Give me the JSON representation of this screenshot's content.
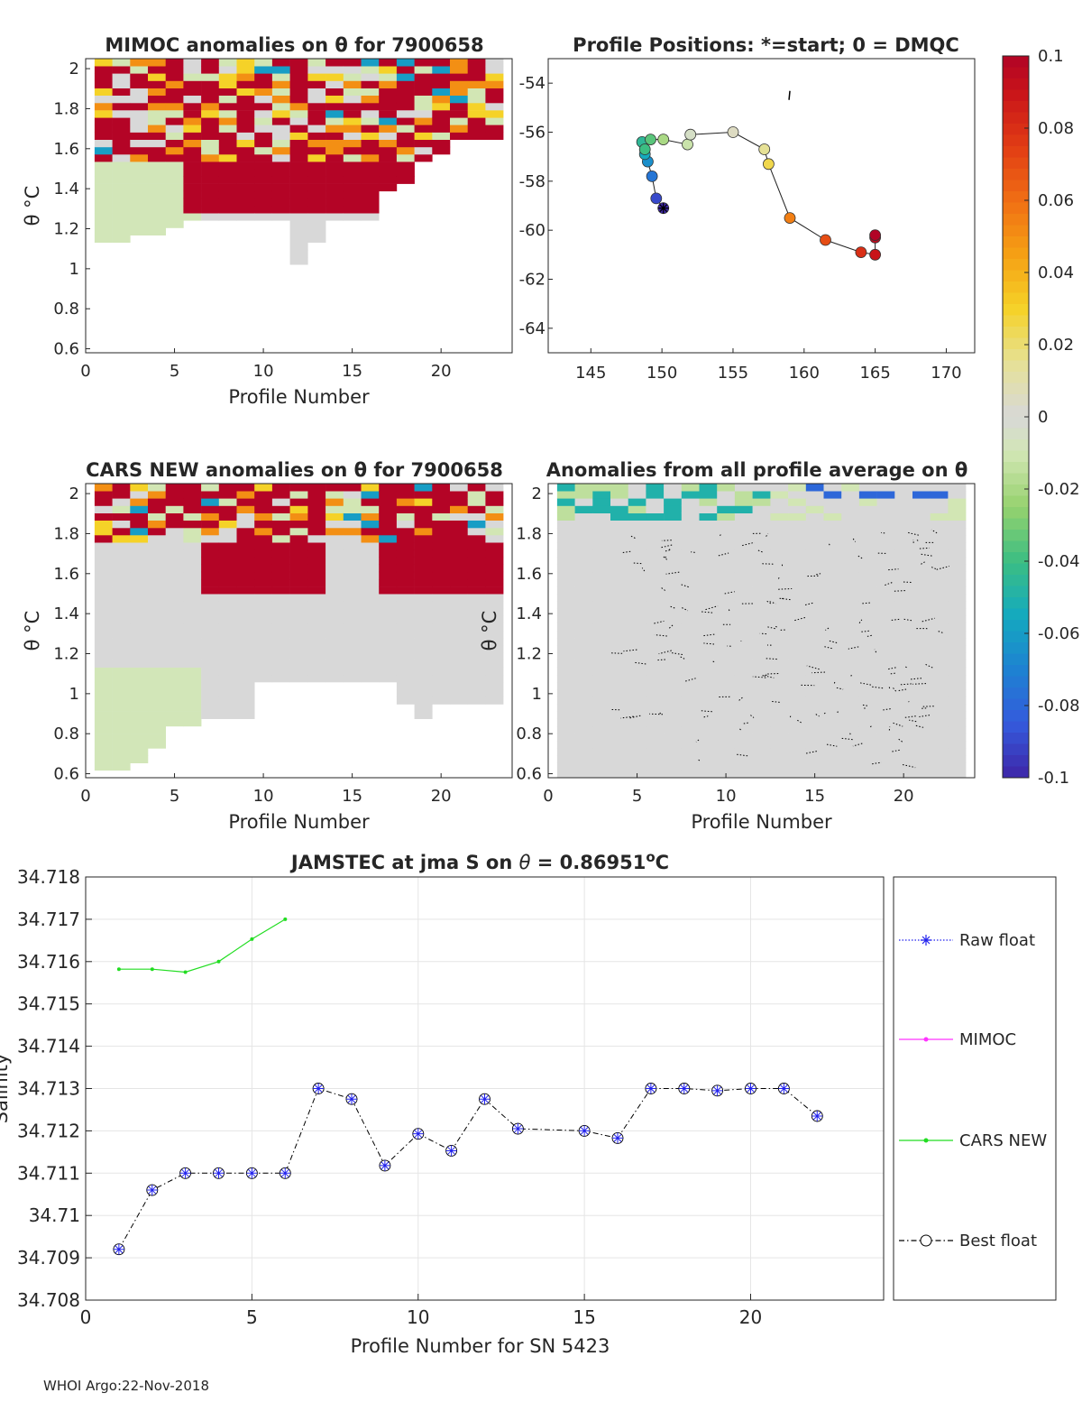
{
  "footer": "WHOI Argo:22-Nov-2018",
  "colors": {
    "red": "#b40426",
    "lightgray": "#d8d8d8",
    "palegreen": "#d2e6b8",
    "cars_line": "#22dd22",
    "mimoc_line": "#ff33ff",
    "raw_marker": "#2222ee",
    "best_line": "#000000",
    "grid": "#e5e5e5"
  },
  "chart_data": [
    {
      "id": "mimoc",
      "type": "heatmap",
      "title": "MIMOC anomalies on θ  for 7900658",
      "xlabel": "Profile Number",
      "ylabel": "θ °C",
      "xlim": [
        0,
        24
      ],
      "ylim": [
        0.58,
        2.05
      ],
      "xticks": [
        "0",
        "5",
        "10",
        "15",
        "20"
      ],
      "yticks": [
        "0.6",
        "0.8",
        "1",
        "1.2",
        "1.4",
        "1.6",
        "1.8",
        "2"
      ],
      "profiles": [
        1,
        23
      ],
      "bottom_theta": [
        1.15,
        1.15,
        1.17,
        1.2,
        1.22,
        1.25,
        1.27,
        1.27,
        1.27,
        1.27,
        1.27,
        1.04,
        1.15,
        1.27,
        1.27,
        1.27,
        1.4,
        1.45,
        1.55,
        1.6,
        1.65,
        1.68,
        1.68
      ],
      "red_region": {
        "from_profile": 6,
        "to_profile": 19,
        "from_theta": 1.25,
        "to_theta": 2.05
      },
      "noisy_top": {
        "from_theta": 1.5,
        "to_theta": 2.05
      }
    },
    {
      "id": "positions",
      "type": "scatter",
      "title": "Profile Positions: *=start; 0 = DMQC",
      "xlabel": "",
      "ylabel": "",
      "xlim": [
        142,
        172
      ],
      "ylim": [
        -65,
        -53
      ],
      "xticks": [
        "145",
        "150",
        "155",
        "160",
        "165",
        "170"
      ],
      "yticks": [
        "-54",
        "-56",
        "-58",
        "-60",
        "-62",
        "-64"
      ],
      "lon": [
        150.1,
        149.6,
        149.3,
        149.0,
        148.8,
        148.6,
        148.8,
        149.2,
        150.1,
        151.8,
        152.0,
        155.0,
        157.2,
        157.5,
        159.0,
        161.5,
        164.0,
        165.0,
        165.0,
        165.0
      ],
      "lat": [
        -59.1,
        -58.7,
        -57.8,
        -57.2,
        -56.9,
        -56.4,
        -56.7,
        -56.3,
        -56.3,
        -56.5,
        -56.1,
        -56.0,
        -56.7,
        -57.3,
        -59.5,
        -60.4,
        -60.9,
        -61.0,
        -60.3,
        -60.2
      ],
      "color_value": [
        -0.1,
        -0.09,
        -0.075,
        -0.065,
        -0.055,
        -0.045,
        -0.04,
        -0.035,
        -0.02,
        -0.012,
        -0.005,
        0.005,
        0.015,
        0.025,
        0.055,
        0.07,
        0.08,
        0.09,
        0.095,
        0.1
      ],
      "mark": {
        "lon": 159.0,
        "lat": -54.5
      }
    },
    {
      "id": "cars",
      "type": "heatmap",
      "title": "CARS NEW anomalies on θ for 7900658",
      "xlabel": "Profile Number",
      "ylabel": "θ °C",
      "xlim": [
        0,
        24
      ],
      "ylim": [
        0.58,
        2.05
      ],
      "xticks": [
        "0",
        "5",
        "10",
        "15",
        "20"
      ],
      "yticks": [
        "0.6",
        "0.8",
        "1",
        "1.2",
        "1.4",
        "1.6",
        "1.8",
        "2"
      ],
      "profiles": [
        1,
        23
      ],
      "bottom_theta": [
        0.63,
        0.64,
        0.68,
        0.75,
        0.85,
        0.85,
        0.9,
        0.91,
        0.91,
        1.06,
        1.07,
        1.07,
        1.07,
        1.07,
        1.07,
        1.07,
        1.07,
        0.96,
        0.89,
        0.96,
        0.96,
        0.97,
        0.97
      ],
      "red_region": {
        "from_profile": 7,
        "to_profile": 23,
        "from_theta": 1.48,
        "to_theta": 2.05
      },
      "noisy_top": {
        "from_theta": 1.72,
        "to_theta": 2.05
      }
    },
    {
      "id": "all_avg",
      "type": "heatmap",
      "title": "Anomalies from all profile average on θ",
      "xlabel": "Profile Number",
      "ylabel": "θ °C",
      "xlim": [
        0,
        24
      ],
      "ylim": [
        0.58,
        2.05
      ],
      "xticks": [
        "0",
        "5",
        "10",
        "15",
        "20"
      ],
      "yticks": [
        "0.6",
        "0.8",
        "1",
        "1.2",
        "1.4",
        "1.6",
        "1.8",
        "2"
      ],
      "profiles": [
        1,
        23
      ],
      "bottom_theta": [
        0.58,
        0.58,
        0.58,
        0.58,
        0.58,
        0.58,
        0.58,
        0.58,
        0.58,
        0.58,
        0.58,
        0.58,
        0.58,
        0.58,
        0.58,
        0.58,
        0.58,
        0.58,
        0.58,
        0.58,
        0.58,
        0.58,
        0.58
      ],
      "noisy_top": {
        "from_theta": 1.86,
        "to_theta": 2.05
      }
    },
    {
      "id": "colorbar",
      "type": "colorbar",
      "range": [
        -0.1,
        0.1
      ],
      "ticks": [
        "0.1",
        "0.08",
        "0.06",
        "0.04",
        "0.02",
        "0",
        "-0.02",
        "-0.04",
        "-0.06",
        "-0.08",
        "-0.1"
      ],
      "tick_values": [
        0.1,
        0.08,
        0.06,
        0.04,
        0.02,
        0,
        -0.02,
        -0.04,
        -0.06,
        -0.08,
        -0.1
      ]
    },
    {
      "id": "salinity",
      "type": "line",
      "title": "JAMSTEC at jma S on θ = 0.86951°C",
      "title_main": "JAMSTEC at jma S on ",
      "title_theta": "θ",
      "title_value": " = 0.86951",
      "title_sup": "o",
      "title_unit": "C",
      "xlabel": "Profile Number for SN 5423",
      "ylabel": "Salinity",
      "xlim": [
        0,
        24
      ],
      "ylim": [
        34.708,
        34.718
      ],
      "xticks": [
        "0",
        "5",
        "10",
        "15",
        "20"
      ],
      "yticks": [
        "34.718",
        "34.717",
        "34.716",
        "34.715",
        "34.714",
        "34.713",
        "34.712",
        "34.711",
        "34.71",
        "34.709",
        "34.708"
      ],
      "grid": true,
      "legend_position": "outside-right",
      "series": [
        {
          "name": "Raw float",
          "x": [
            1,
            2,
            3,
            4,
            5,
            6,
            7,
            8,
            9,
            10,
            11,
            12,
            13,
            15,
            16,
            17,
            18,
            19,
            20,
            21,
            22
          ],
          "values": [
            34.7092,
            34.7106,
            34.711,
            34.711,
            34.711,
            34.711,
            34.713,
            34.71275,
            34.71118,
            34.71193,
            34.71153,
            34.71275,
            34.71205,
            34.712,
            34.71183,
            34.713,
            34.713,
            34.71295,
            34.713,
            34.713,
            34.71235
          ]
        },
        {
          "name": "MIMOC",
          "x": [],
          "values": []
        },
        {
          "name": "CARS NEW",
          "x": [
            1,
            2,
            3,
            4,
            5,
            6
          ],
          "values": [
            34.71582,
            34.71582,
            34.71575,
            34.716,
            34.71653,
            34.717
          ]
        },
        {
          "name": "Best float",
          "x": [
            1,
            2,
            3,
            4,
            5,
            6,
            7,
            8,
            9,
            10,
            11,
            12,
            13,
            15,
            16,
            17,
            18,
            19,
            20,
            21,
            22
          ],
          "values": [
            34.7092,
            34.7106,
            34.711,
            34.711,
            34.711,
            34.711,
            34.713,
            34.71275,
            34.71118,
            34.71193,
            34.71153,
            34.71275,
            34.71205,
            34.712,
            34.71183,
            34.713,
            34.713,
            34.71295,
            34.713,
            34.713,
            34.71235
          ]
        }
      ]
    }
  ]
}
